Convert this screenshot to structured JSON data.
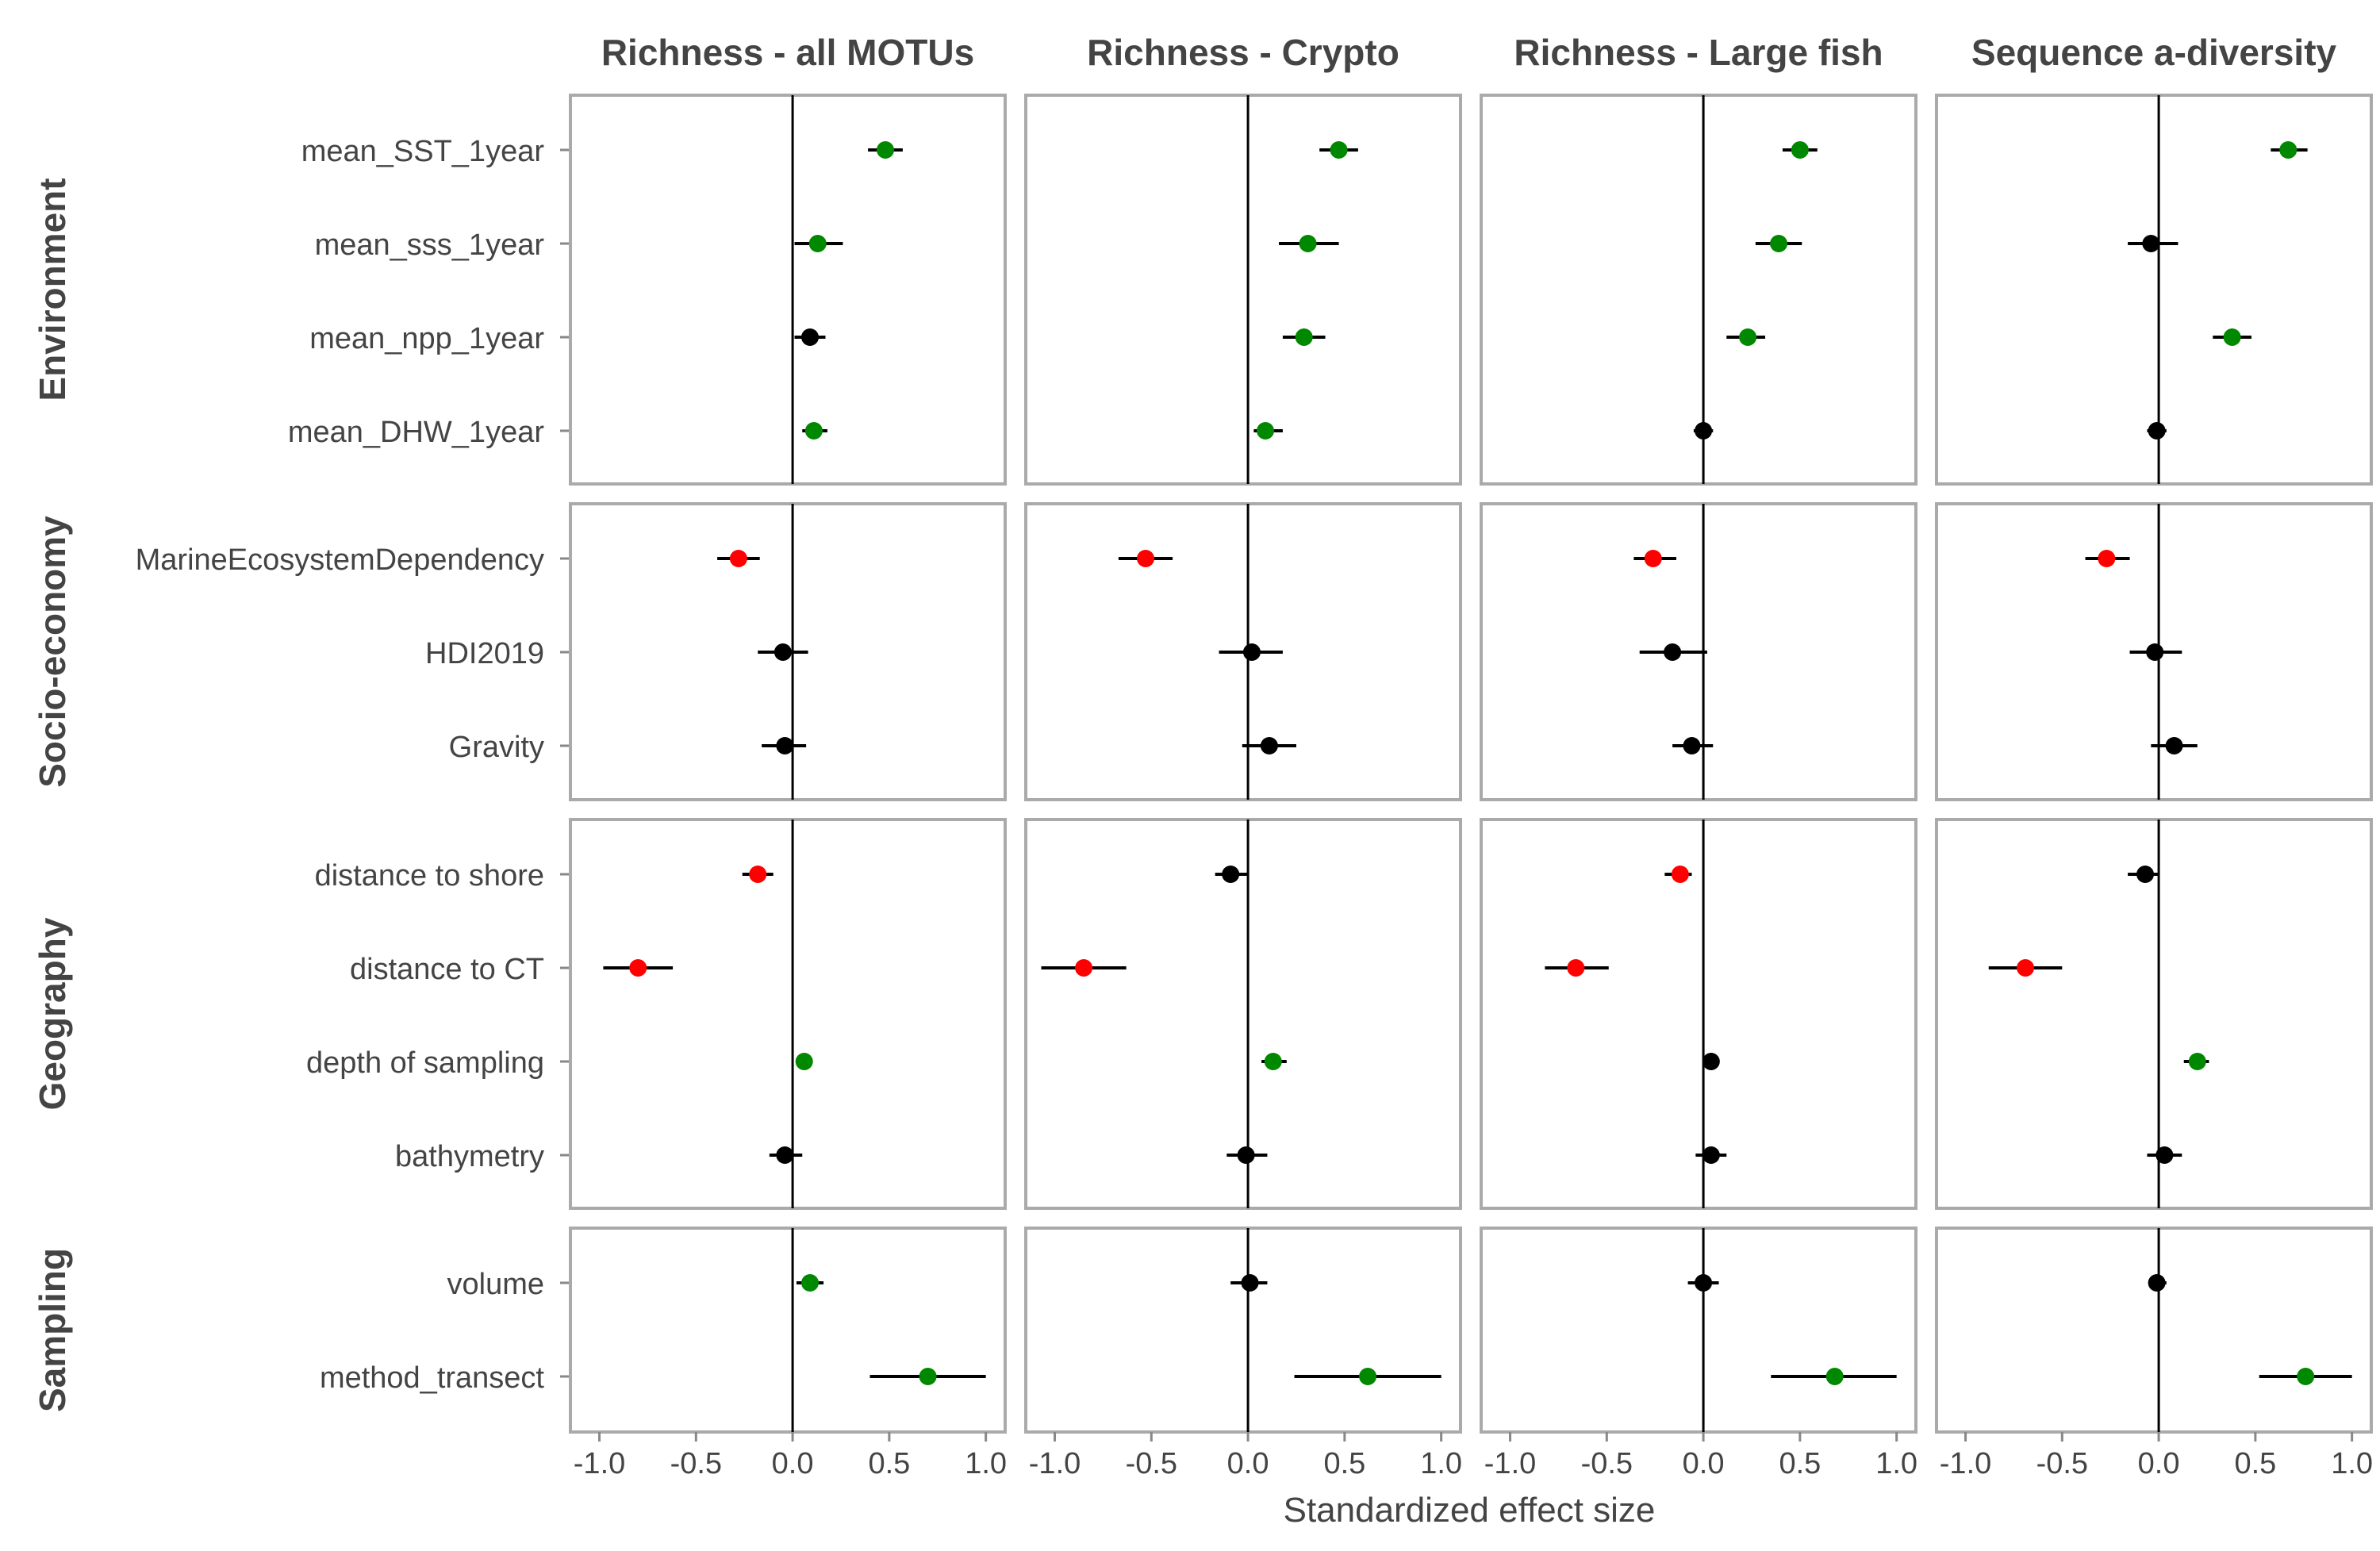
{
  "chart_data": {
    "type": "forest",
    "xlabel": "Standardized effect size",
    "xlim": [
      -1.15,
      1.1
    ],
    "x_ticks": [
      -1.0,
      -0.5,
      0.0,
      0.5,
      1.0
    ],
    "x_tick_labels": [
      "-1.0",
      "-0.5",
      "0.0",
      "0.5",
      "1.0"
    ],
    "grid": false,
    "colors": {
      "positive": "#008800",
      "negative": "#ff0000",
      "ns": "#000000"
    },
    "panels": [
      {
        "name": "Richness - all MOTUs"
      },
      {
        "name": "Richness - Crypto"
      },
      {
        "name": "Richness - Large fish"
      },
      {
        "name": "Sequence a-diversity"
      }
    ],
    "groups": [
      {
        "name": "Environment",
        "variables": [
          "mean_SST_1year",
          "mean_sss_1year",
          "mean_npp_1year",
          "mean_DHW_1year"
        ]
      },
      {
        "name": "Socio-economy",
        "variables": [
          "MarineEcosystemDependency",
          "HDI2019",
          "Gravity"
        ]
      },
      {
        "name": "Geography",
        "variables": [
          "distance to shore",
          "distance to CT",
          "depth of sampling",
          "bathymetry"
        ]
      },
      {
        "name": "Sampling",
        "variables": [
          "volume",
          "method_transect"
        ]
      }
    ],
    "estimates": [
      [
        [
          [
            0.48,
            0.39,
            0.57,
            "positive"
          ],
          [
            0.13,
            0.01,
            0.26,
            "positive"
          ],
          [
            0.09,
            0.01,
            0.17,
            "ns"
          ],
          [
            0.11,
            0.05,
            0.18,
            "positive"
          ]
        ],
        [
          [
            -0.28,
            -0.39,
            -0.17,
            "negative"
          ],
          [
            -0.05,
            -0.18,
            0.08,
            "ns"
          ],
          [
            -0.04,
            -0.16,
            0.07,
            "ns"
          ]
        ],
        [
          [
            -0.18,
            -0.26,
            -0.1,
            "negative"
          ],
          [
            -0.8,
            -0.98,
            -0.62,
            "negative"
          ],
          [
            0.06,
            0.02,
            0.1,
            "positive"
          ],
          [
            -0.04,
            -0.12,
            0.05,
            "ns"
          ]
        ],
        [
          [
            0.09,
            0.02,
            0.16,
            "positive"
          ],
          [
            0.7,
            0.4,
            1.0,
            "positive"
          ]
        ]
      ],
      [
        [
          [
            0.47,
            0.37,
            0.57,
            "positive"
          ],
          [
            0.31,
            0.16,
            0.47,
            "positive"
          ],
          [
            0.29,
            0.18,
            0.4,
            "positive"
          ],
          [
            0.09,
            0.03,
            0.18,
            "positive"
          ]
        ],
        [
          [
            -0.53,
            -0.67,
            -0.39,
            "negative"
          ],
          [
            0.02,
            -0.15,
            0.18,
            "ns"
          ],
          [
            0.11,
            -0.03,
            0.25,
            "ns"
          ]
        ],
        [
          [
            -0.09,
            -0.17,
            0.0,
            "ns"
          ],
          [
            -0.85,
            -1.07,
            -0.63,
            "negative"
          ],
          [
            0.13,
            0.07,
            0.2,
            "positive"
          ],
          [
            -0.01,
            -0.11,
            0.1,
            "ns"
          ]
        ],
        [
          [
            0.01,
            -0.09,
            0.1,
            "ns"
          ],
          [
            0.62,
            0.24,
            1.0,
            "positive"
          ]
        ]
      ],
      [
        [
          [
            0.5,
            0.41,
            0.59,
            "positive"
          ],
          [
            0.39,
            0.27,
            0.51,
            "positive"
          ],
          [
            0.23,
            0.12,
            0.32,
            "positive"
          ],
          [
            0.0,
            -0.05,
            0.05,
            "ns"
          ]
        ],
        [
          [
            -0.26,
            -0.36,
            -0.14,
            "negative"
          ],
          [
            -0.16,
            -0.33,
            0.02,
            "ns"
          ],
          [
            -0.06,
            -0.16,
            0.05,
            "ns"
          ]
        ],
        [
          [
            -0.12,
            -0.2,
            -0.06,
            "negative"
          ],
          [
            -0.66,
            -0.82,
            -0.49,
            "negative"
          ],
          [
            0.04,
            0.02,
            0.07,
            "ns"
          ],
          [
            0.04,
            -0.04,
            0.12,
            "ns"
          ]
        ],
        [
          [
            0.0,
            -0.08,
            0.08,
            "ns"
          ],
          [
            0.68,
            0.35,
            1.0,
            "positive"
          ]
        ]
      ],
      [
        [
          [
            0.67,
            0.58,
            0.77,
            "positive"
          ],
          [
            -0.04,
            -0.16,
            0.1,
            "ns"
          ],
          [
            0.38,
            0.28,
            0.48,
            "positive"
          ],
          [
            -0.01,
            -0.06,
            0.04,
            "ns"
          ]
        ],
        [
          [
            -0.27,
            -0.38,
            -0.15,
            "negative"
          ],
          [
            -0.02,
            -0.15,
            0.12,
            "ns"
          ],
          [
            0.08,
            -0.04,
            0.2,
            "ns"
          ]
        ],
        [
          [
            -0.07,
            -0.16,
            0.0,
            "ns"
          ],
          [
            -0.69,
            -0.88,
            -0.5,
            "negative"
          ],
          [
            0.2,
            0.13,
            0.26,
            "positive"
          ],
          [
            0.03,
            -0.06,
            0.12,
            "ns"
          ]
        ],
        [
          [
            -0.01,
            -0.05,
            0.04,
            "ns"
          ],
          [
            0.76,
            0.52,
            1.0,
            "positive"
          ]
        ]
      ]
    ]
  }
}
